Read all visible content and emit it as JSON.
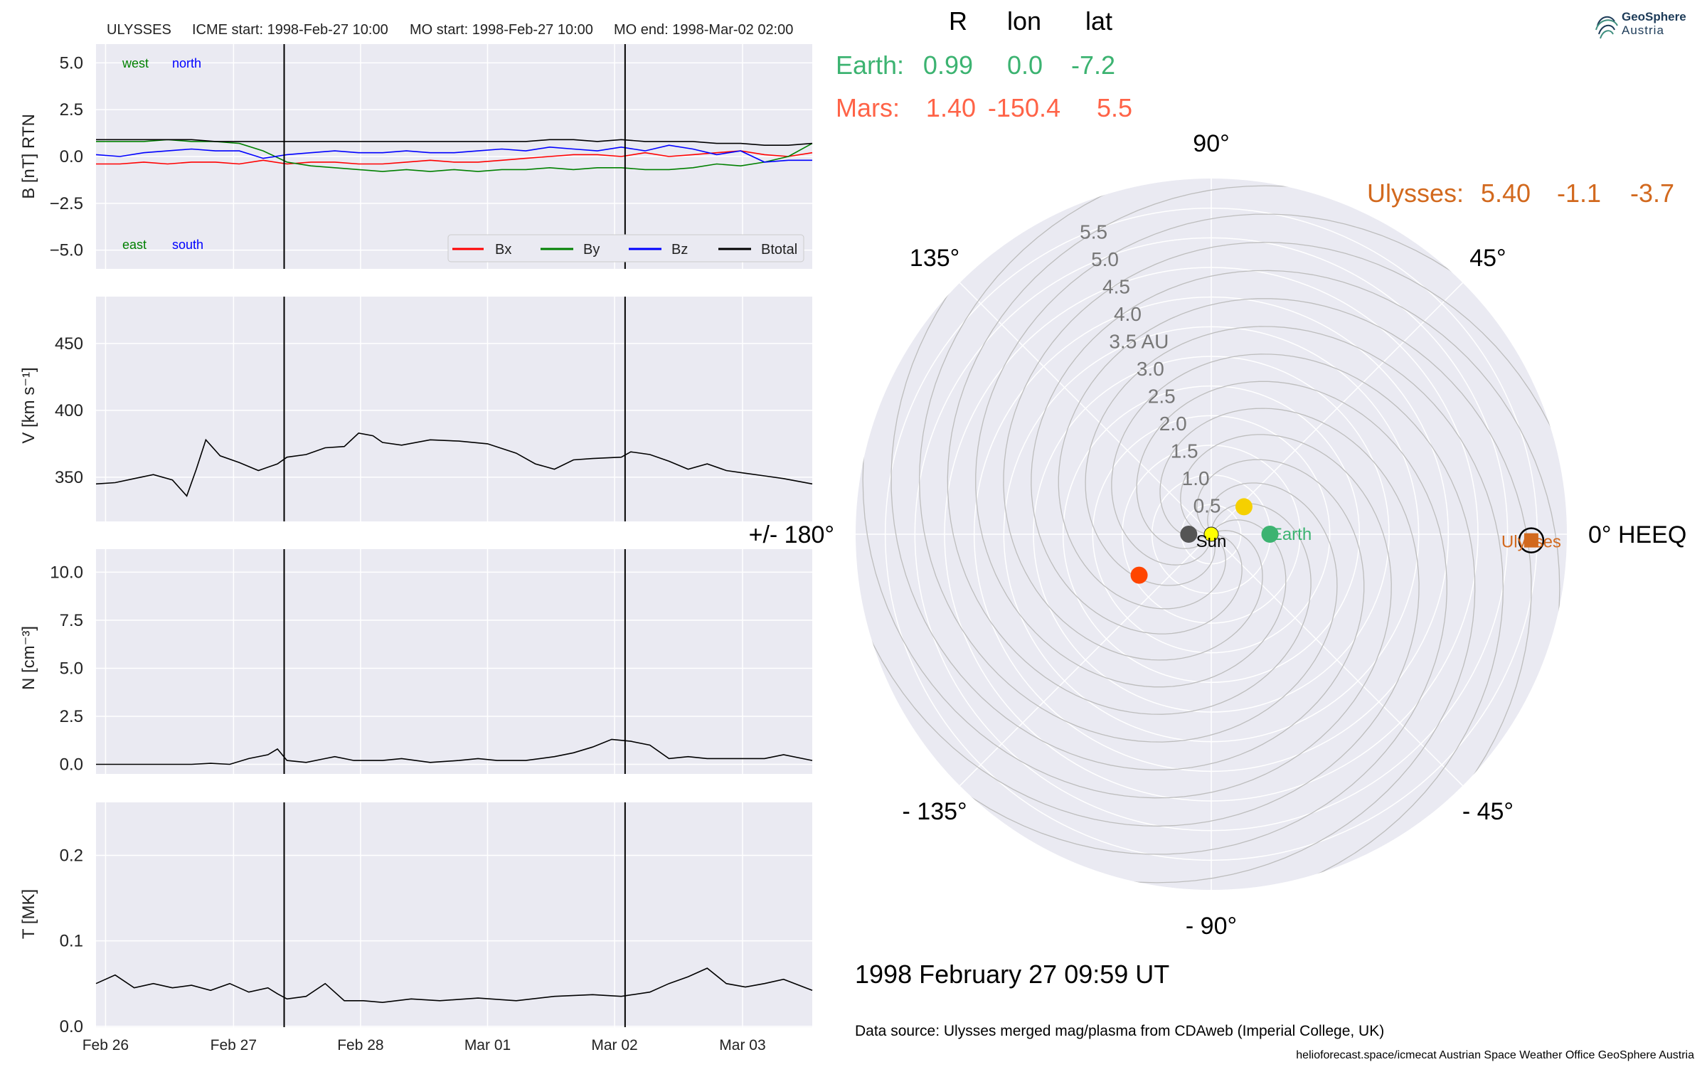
{
  "header": {
    "spacecraft": "ULYSSES",
    "icme_start": "ICME start: 1998-Feb-27 10:00",
    "mo_start": "MO start: 1998-Feb-27 10:00",
    "mo_end": "MO end: 1998-Mar-02 02:00"
  },
  "logo": {
    "line1": "GeoSphere",
    "line2": "Austria"
  },
  "positions_table": {
    "columns": [
      "R",
      "lon",
      "lat"
    ],
    "rows": [
      {
        "name": "Earth:",
        "R": "0.99",
        "lon": "0.0",
        "lat": "-7.2",
        "color": "#3cb371"
      },
      {
        "name": "Mars:",
        "R": "1.40",
        "lon": "-150.4",
        "lat": "5.5",
        "color": "#ff6347"
      },
      {
        "name": "Ulysses:",
        "R": "5.40",
        "lon": "-1.1",
        "lat": "-3.7",
        "color": "#d2691e"
      }
    ]
  },
  "timestamp": "1998 February 27  09:59 UT",
  "data_source": "Data source: Ulysses merged mag/plasma from CDAweb (Imperial College, UK)",
  "footer": "helioforecast.space/icmecat   Austrian Space Weather Office   GeoSphere Austria",
  "colors": {
    "panel_bg": "#eaeaf2",
    "grid": "#ffffff",
    "bx": "#ff0000",
    "by": "#008000",
    "bz": "#0000ff",
    "btotal": "#000000"
  },
  "chart_data": [
    {
      "type": "line",
      "ylabel": "B [nT] RTN",
      "ylim": [
        -6.0,
        6.0
      ],
      "yticks": [
        "5.0",
        "2.5",
        "0.0",
        "−2.5",
        "−5.0"
      ],
      "ytick_values": [
        5.0,
        2.5,
        0.0,
        -2.5,
        -5.0
      ],
      "annotations": [
        {
          "text": "west",
          "color": "#008000"
        },
        {
          "text": "north",
          "color": "#0000ff"
        },
        {
          "text": "east",
          "color": "#008000"
        },
        {
          "text": "south",
          "color": "#0000ff"
        }
      ],
      "legend": [
        "Bx",
        "By",
        "Bz",
        "Btotal"
      ],
      "legend_placement": "bottom-right",
      "xlim": [
        0.0,
        7.5
      ],
      "x": [
        0.0,
        0.25,
        0.5,
        0.75,
        1.0,
        1.25,
        1.5,
        1.75,
        2.0,
        2.25,
        2.5,
        2.75,
        3.0,
        3.25,
        3.5,
        3.75,
        4.0,
        4.25,
        4.5,
        4.75,
        5.0,
        5.25,
        5.5,
        5.75,
        6.0,
        6.25,
        6.5,
        6.75,
        7.0,
        7.25,
        7.5
      ],
      "series": [
        {
          "name": "Bx",
          "values": [
            -0.4,
            -0.4,
            -0.3,
            -0.4,
            -0.3,
            -0.3,
            -0.4,
            -0.2,
            -0.4,
            -0.3,
            -0.3,
            -0.4,
            -0.4,
            -0.3,
            -0.2,
            -0.3,
            -0.3,
            -0.2,
            -0.1,
            0.0,
            0.1,
            0.1,
            0.0,
            0.2,
            0.0,
            0.1,
            0.2,
            0.3,
            0.1,
            0.0,
            0.2
          ]
        },
        {
          "name": "By",
          "values": [
            0.8,
            0.8,
            0.8,
            0.9,
            0.8,
            0.8,
            0.7,
            0.3,
            -0.3,
            -0.5,
            -0.6,
            -0.7,
            -0.8,
            -0.7,
            -0.8,
            -0.7,
            -0.8,
            -0.7,
            -0.7,
            -0.6,
            -0.7,
            -0.6,
            -0.6,
            -0.7,
            -0.7,
            -0.6,
            -0.4,
            -0.5,
            -0.3,
            0.0,
            0.7
          ]
        },
        {
          "name": "Bz",
          "values": [
            0.1,
            0.0,
            0.2,
            0.3,
            0.4,
            0.3,
            0.3,
            -0.1,
            0.1,
            0.2,
            0.3,
            0.2,
            0.2,
            0.3,
            0.2,
            0.2,
            0.3,
            0.4,
            0.3,
            0.5,
            0.4,
            0.3,
            0.5,
            0.3,
            0.6,
            0.4,
            0.1,
            0.3,
            -0.3,
            -0.2,
            -0.2
          ]
        },
        {
          "name": "Btotal",
          "values": [
            0.9,
            0.9,
            0.9,
            0.9,
            0.9,
            0.8,
            0.8,
            0.8,
            0.8,
            0.8,
            0.8,
            0.8,
            0.8,
            0.8,
            0.8,
            0.8,
            0.8,
            0.8,
            0.8,
            0.9,
            0.9,
            0.8,
            0.9,
            0.8,
            0.8,
            0.8,
            0.7,
            0.7,
            0.6,
            0.6,
            0.7
          ]
        }
      ]
    },
    {
      "type": "line",
      "ylabel": "V [km s⁻¹]",
      "ylim": [
        317,
        485
      ],
      "yticks": [
        "450",
        "400",
        "350"
      ],
      "ytick_values": [
        450,
        400,
        350
      ],
      "xlim": [
        0.0,
        7.5
      ],
      "x": [
        0.0,
        0.2,
        0.4,
        0.6,
        0.8,
        0.95,
        1.05,
        1.15,
        1.3,
        1.5,
        1.7,
        1.9,
        2.0,
        2.2,
        2.4,
        2.6,
        2.75,
        2.9,
        3.0,
        3.2,
        3.5,
        3.8,
        4.1,
        4.4,
        4.6,
        4.8,
        5.0,
        5.2,
        5.5,
        5.6,
        5.8,
        6.0,
        6.2,
        6.4,
        6.6,
        6.8,
        7.0,
        7.2,
        7.5
      ],
      "series": [
        {
          "name": "V",
          "values": [
            345,
            346,
            349,
            352,
            348,
            336,
            356,
            378,
            366,
            361,
            355,
            360,
            365,
            367,
            372,
            373,
            383,
            381,
            376,
            374,
            378,
            377,
            375,
            368,
            360,
            356,
            363,
            364,
            365,
            369,
            367,
            362,
            356,
            360,
            355,
            353,
            351,
            349,
            345
          ]
        }
      ]
    },
    {
      "type": "line",
      "ylabel": "N [cm⁻³]",
      "ylim": [
        -0.5,
        11.2
      ],
      "yticks": [
        "10.0",
        "7.5",
        "5.0",
        "2.5",
        "0.0"
      ],
      "ytick_values": [
        10.0,
        7.5,
        5.0,
        2.5,
        0.0
      ],
      "xlim": [
        0.0,
        7.5
      ],
      "x": [
        0.0,
        0.5,
        1.0,
        1.2,
        1.4,
        1.6,
        1.8,
        1.9,
        2.0,
        2.2,
        2.4,
        2.5,
        2.7,
        3.0,
        3.2,
        3.5,
        3.8,
        4.0,
        4.2,
        4.5,
        4.8,
        5.0,
        5.2,
        5.4,
        5.6,
        5.8,
        6.0,
        6.2,
        6.4,
        6.6,
        6.8,
        7.0,
        7.2,
        7.5
      ],
      "series": [
        {
          "name": "N",
          "values": [
            0.0,
            0.0,
            0.0,
            0.05,
            0.0,
            0.3,
            0.5,
            0.8,
            0.2,
            0.1,
            0.3,
            0.4,
            0.2,
            0.2,
            0.3,
            0.1,
            0.2,
            0.3,
            0.2,
            0.2,
            0.4,
            0.6,
            0.9,
            1.3,
            1.2,
            1.0,
            0.3,
            0.4,
            0.3,
            0.3,
            0.3,
            0.3,
            0.5,
            0.2
          ]
        }
      ]
    },
    {
      "type": "line",
      "ylabel": "T [MK]",
      "ylim": [
        -0.001,
        0.262
      ],
      "yticks": [
        "0.2",
        "0.1",
        "0.0"
      ],
      "ytick_values": [
        0.2,
        0.1,
        0.0
      ],
      "xlim": [
        0.0,
        7.5
      ],
      "xticks": [
        "Feb 26",
        "Feb 27",
        "Feb 28",
        "Mar 01",
        "Mar 02",
        "Mar 03"
      ],
      "xtick_values": [
        0.1,
        1.44,
        2.77,
        4.1,
        5.43,
        6.77
      ],
      "event_lines": [
        1.97,
        5.54
      ],
      "x": [
        0.0,
        0.2,
        0.4,
        0.6,
        0.8,
        1.0,
        1.2,
        1.4,
        1.6,
        1.8,
        1.9,
        2.0,
        2.2,
        2.4,
        2.6,
        2.8,
        3.0,
        3.3,
        3.6,
        4.0,
        4.4,
        4.8,
        5.2,
        5.5,
        5.8,
        6.0,
        6.2,
        6.4,
        6.6,
        6.8,
        7.0,
        7.2,
        7.5
      ],
      "series": [
        {
          "name": "T",
          "values": [
            0.05,
            0.06,
            0.045,
            0.05,
            0.045,
            0.048,
            0.042,
            0.05,
            0.04,
            0.045,
            0.038,
            0.032,
            0.035,
            0.05,
            0.03,
            0.03,
            0.028,
            0.032,
            0.03,
            0.033,
            0.03,
            0.035,
            0.037,
            0.035,
            0.04,
            0.05,
            0.058,
            0.068,
            0.05,
            0.046,
            0.05,
            0.055,
            0.042
          ]
        }
      ]
    },
    {
      "type": "scatter",
      "projection": "polar",
      "radial_max_au": 6.0,
      "radial_labels": [
        "0.5",
        "1.0",
        "1.5",
        "2.0",
        "2.5",
        "3.0",
        "3.5 AU",
        "4.0",
        "4.5",
        "5.0",
        "5.5"
      ],
      "radial_values": [
        0.5,
        1.0,
        1.5,
        2.0,
        2.5,
        3.0,
        3.5,
        4.0,
        4.5,
        5.0,
        5.5
      ],
      "angle_labels": [
        {
          "text": "90°",
          "deg": 90
        },
        {
          "text": "45°",
          "deg": 45
        },
        {
          "text": "0° HEEQ",
          "deg": 0
        },
        {
          "text": "- 45°",
          "deg": -45
        },
        {
          "text": "- 90°",
          "deg": -90
        },
        {
          "text": "- 135°",
          "deg": -135
        },
        {
          "text": "+/- 180°",
          "deg": 180
        },
        {
          "text": "135°",
          "deg": 135
        }
      ],
      "points": [
        {
          "label": "Sun",
          "r_au": 0.0,
          "lon_deg": 0.0,
          "color": "#ffff00",
          "marker": "circle"
        },
        {
          "label": "Earth",
          "r_au": 0.99,
          "lon_deg": 0.0,
          "color": "#3cb371",
          "marker": "circle"
        },
        {
          "label": "",
          "r_au": 0.72,
          "lon_deg": 40.0,
          "color": "#f5d000",
          "marker": "circle"
        },
        {
          "label": "",
          "r_au": 0.38,
          "lon_deg": 180.0,
          "color": "#555555",
          "marker": "circle"
        },
        {
          "label": "",
          "r_au": 1.4,
          "lon_deg": -150.4,
          "color": "#ff4500",
          "marker": "circle"
        },
        {
          "label": "Ulysses",
          "r_au": 5.4,
          "lon_deg": -1.1,
          "color": "#d2691e",
          "marker": "square"
        }
      ],
      "spiral_count": 12
    }
  ]
}
